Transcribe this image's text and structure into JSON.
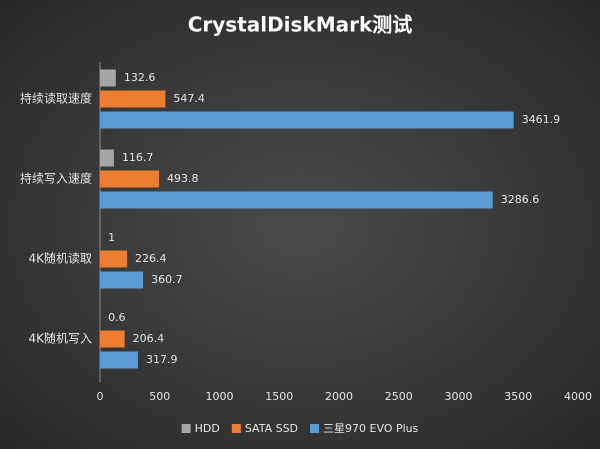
{
  "chart_data": {
    "type": "bar",
    "orientation": "horizontal",
    "title": "CrystalDiskMark测试",
    "categories": [
      "持续读取速度",
      "持续写入速度",
      "4K随机读取",
      "4K随机写入"
    ],
    "series": [
      {
        "name": "HDD",
        "color": "#a5a5a5",
        "values": [
          132.6,
          116.7,
          1,
          0.6
        ]
      },
      {
        "name": "SATA SSD",
        "color": "#ed7d31",
        "values": [
          547.4,
          493.8,
          226.4,
          206.4
        ]
      },
      {
        "name": "三星970 EVO Plus",
        "color": "#5b9bd5",
        "values": [
          3461.9,
          3286.6,
          360.7,
          317.9
        ]
      }
    ],
    "xlim": [
      0,
      4000
    ],
    "xticks": [
      0,
      500,
      1000,
      1500,
      2000,
      2500,
      3000,
      3500,
      4000
    ],
    "grid": false,
    "legend": "bottom"
  }
}
